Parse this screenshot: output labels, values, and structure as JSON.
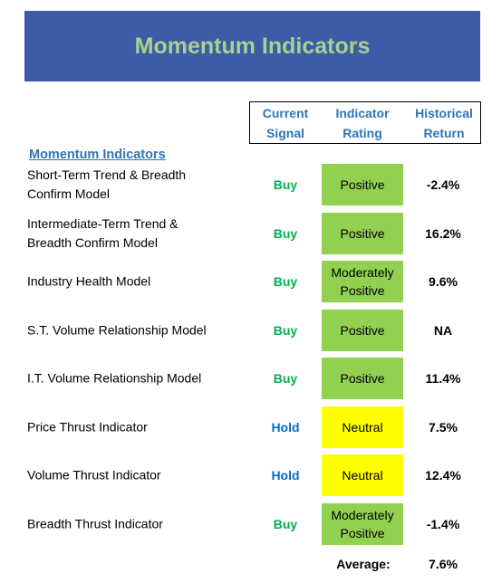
{
  "header": {
    "title": "Momentum Indicators"
  },
  "columns": [
    "Current Signal",
    "Indicator Rating",
    "Historical Return"
  ],
  "section": "Momentum Indicators",
  "rows": [
    {
      "name": [
        "Short-Term Trend & Breadth",
        "Confirm Model"
      ],
      "signal": "Buy",
      "signal_color": "#00b050",
      "rating": "Positive",
      "rating_color": "#92d050",
      "return": "-2.4%"
    },
    {
      "name": [
        "Intermediate-Term Trend &",
        "Breadth Confirm Model"
      ],
      "signal": "Buy",
      "signal_color": "#00b050",
      "rating": "Positive",
      "rating_color": "#92d050",
      "return": "16.2%"
    },
    {
      "name": [
        "Industry Health Model"
      ],
      "signal": "Buy",
      "signal_color": "#00b050",
      "rating": "Moderately Positive",
      "rating_color": "#92d050",
      "return": "9.6%"
    },
    {
      "name": [
        "S.T. Volume Relationship Model"
      ],
      "signal": "Buy",
      "signal_color": "#00b050",
      "rating": "Positive",
      "rating_color": "#92d050",
      "return": "NA"
    },
    {
      "name": [
        "I.T. Volume Relationship Model"
      ],
      "signal": "Buy",
      "signal_color": "#00b050",
      "rating": "Positive",
      "rating_color": "#92d050",
      "return": "11.4%"
    },
    {
      "name": [
        "Price Thrust Indicator"
      ],
      "signal": "Hold",
      "signal_color": "#0070c0",
      "rating": "Neutral",
      "rating_color": "#ffff00",
      "return": "7.5%"
    },
    {
      "name": [
        "Volume Thrust Indicator"
      ],
      "signal": "Hold",
      "signal_color": "#0070c0",
      "rating": "Neutral",
      "rating_color": "#ffff00",
      "return": "12.4%"
    },
    {
      "name": [
        "Breadth Thrust Indicator"
      ],
      "signal": "Buy",
      "signal_color": "#00b050",
      "rating": "Moderately Positive",
      "rating_color": "#92d050",
      "return": "-1.4%"
    }
  ],
  "average": {
    "label": "Average:",
    "value": "7.6%"
  }
}
